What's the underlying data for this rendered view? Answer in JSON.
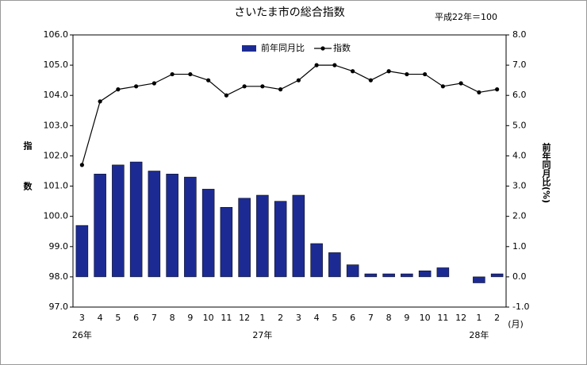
{
  "chart_data": {
    "type": "bar-line",
    "title": "さいたま市の総合指数",
    "note": "平成22年＝100",
    "y_label": "指数",
    "y2_label": "前年同月比(%)",
    "x_unit": "(月)",
    "categories": [
      "3",
      "4",
      "5",
      "6",
      "7",
      "8",
      "9",
      "10",
      "11",
      "12",
      "1",
      "2",
      "3",
      "4",
      "5",
      "6",
      "7",
      "8",
      "9",
      "10",
      "11",
      "12",
      "1",
      "2"
    ],
    "x_groups": [
      "26年",
      null,
      null,
      null,
      null,
      null,
      null,
      null,
      null,
      null,
      "27年",
      null,
      null,
      null,
      null,
      null,
      null,
      null,
      null,
      null,
      null,
      null,
      "28年",
      null
    ],
    "series": [
      {
        "name": "前年同月比",
        "type": "bar",
        "axis": "y2",
        "color": "#1c2b94",
        "values": [
          1.7,
          3.4,
          3.7,
          3.8,
          3.5,
          3.4,
          3.3,
          2.9,
          2.3,
          2.6,
          2.7,
          2.5,
          2.7,
          1.1,
          0.8,
          0.4,
          0.1,
          0.1,
          0.1,
          0.2,
          0.3,
          0.0,
          -0.2,
          0.1
        ]
      },
      {
        "name": "指数",
        "type": "line",
        "axis": "y",
        "color": "#000000",
        "values": [
          101.7,
          103.8,
          104.2,
          104.3,
          104.4,
          104.7,
          104.7,
          104.5,
          104.0,
          104.3,
          104.3,
          104.2,
          104.5,
          105.0,
          105.0,
          104.8,
          104.5,
          104.8,
          104.7,
          104.7,
          104.3,
          104.4,
          104.1,
          104.2
        ]
      }
    ],
    "ylim": [
      97,
      106
    ],
    "yticks": [
      {
        "value": 97,
        "label": "97.0"
      },
      {
        "value": 98,
        "label": "98.0"
      },
      {
        "value": 99,
        "label": "99.0"
      },
      {
        "value": 100,
        "label": "100.0"
      },
      {
        "value": 101,
        "label": "101.0"
      },
      {
        "value": 102,
        "label": "102.0"
      },
      {
        "value": 103,
        "label": "103.0"
      },
      {
        "value": 104,
        "label": "104.0"
      },
      {
        "value": 105,
        "label": "105.0"
      },
      {
        "value": 106,
        "label": "106.0"
      }
    ],
    "y2lim": [
      -1,
      8
    ],
    "y2ticks": [
      {
        "value": -1,
        "label": "-1.0"
      },
      {
        "value": 0,
        "label": "0.0"
      },
      {
        "value": 1,
        "label": "1.0"
      },
      {
        "value": 2,
        "label": "2.0"
      },
      {
        "value": 3,
        "label": "3.0"
      },
      {
        "value": 4,
        "label": "4.0"
      },
      {
        "value": 5,
        "label": "5.0"
      },
      {
        "value": 6,
        "label": "6.0"
      },
      {
        "value": 7,
        "label": "7.0"
      },
      {
        "value": 8,
        "label": "8.0"
      }
    ]
  }
}
